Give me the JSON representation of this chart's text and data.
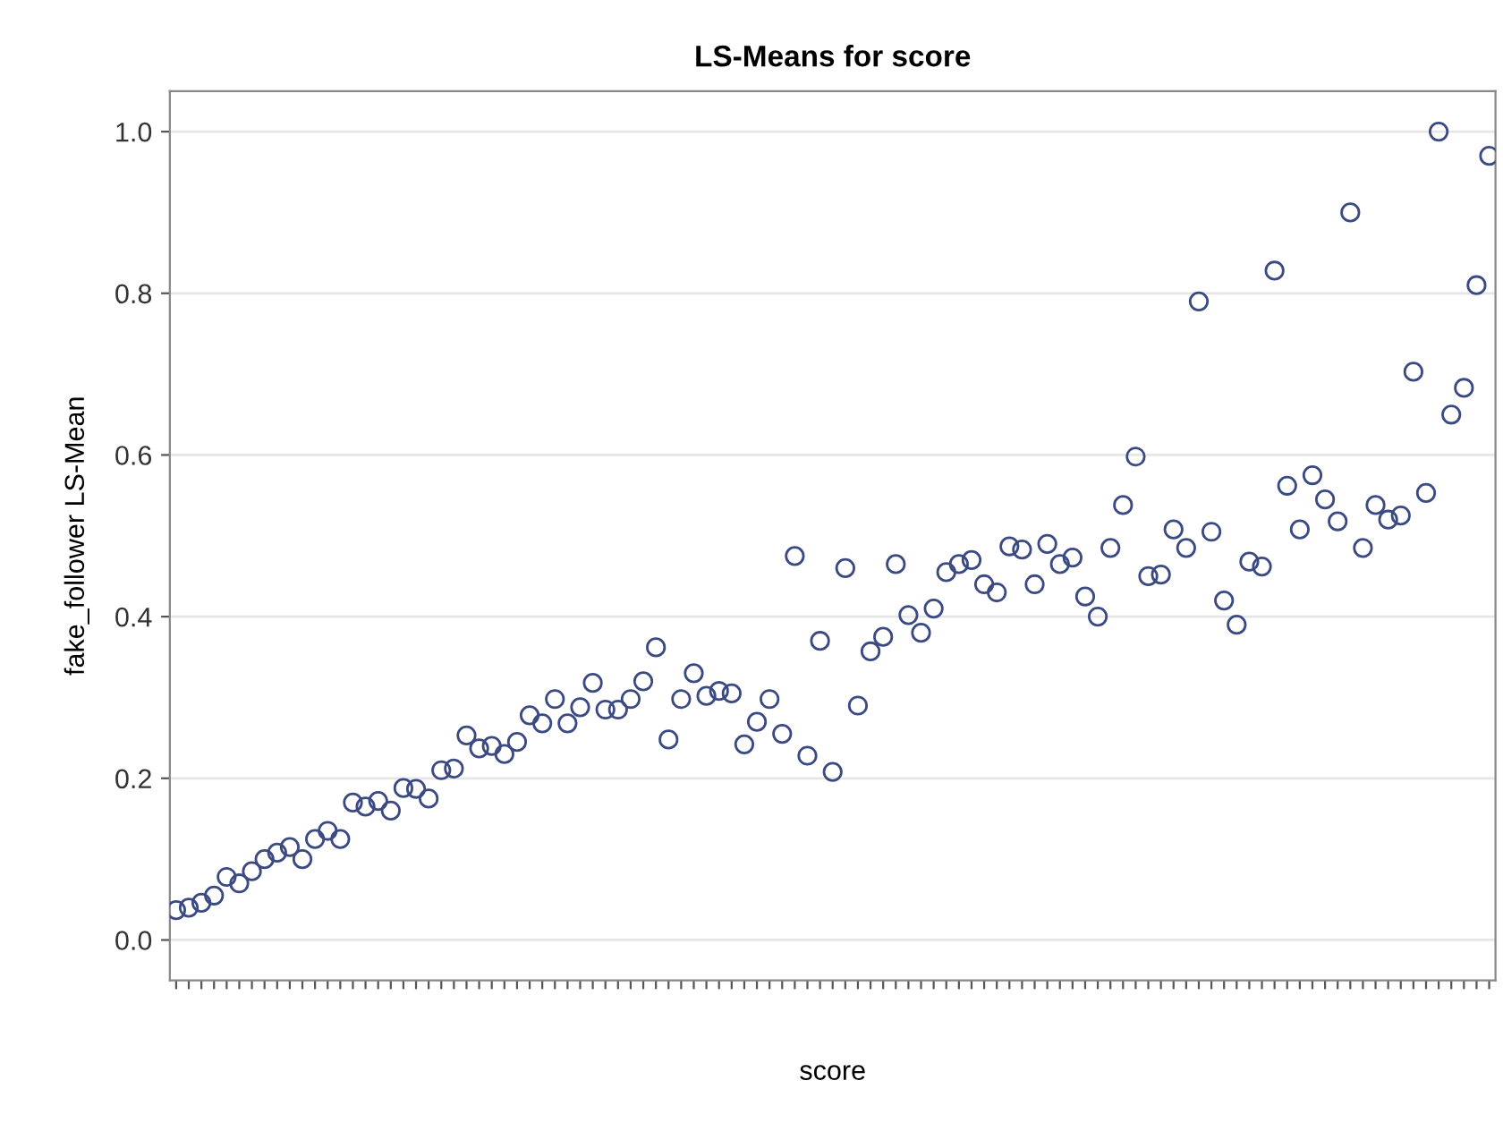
{
  "chart_data": {
    "type": "scatter",
    "title": "LS-Means for score",
    "xlabel": "score",
    "ylabel": "fake_follower LS-Mean",
    "categories": [
      null,
      null,
      null,
      null,
      null,
      null,
      null,
      null,
      null,
      null,
      null,
      null,
      null,
      null,
      null,
      null,
      null,
      null,
      null,
      null,
      null,
      null,
      null,
      null,
      null,
      null,
      null,
      null,
      null,
      null,
      null,
      null,
      null,
      null,
      null,
      null,
      null,
      null,
      null,
      null,
      null,
      null,
      null,
      null,
      null,
      null,
      null,
      null,
      null,
      null,
      null,
      null,
      null,
      null,
      null,
      null,
      null,
      null,
      null,
      null,
      null,
      null,
      null,
      null,
      null,
      null,
      null,
      null,
      null,
      null,
      null,
      null,
      null,
      null,
      null,
      null,
      null,
      null,
      null,
      null,
      null,
      null,
      null,
      null,
      null,
      null,
      null,
      null,
      null,
      null,
      null,
      null,
      null,
      null,
      null,
      null,
      null,
      null,
      null,
      null,
      null,
      null,
      null,
      null,
      null
    ],
    "series": [
      {
        "color": "#3b4a82",
        "values": [
          0.037,
          0.04,
          0.046,
          0.055,
          0.078,
          0.07,
          0.085,
          0.1,
          0.108,
          0.115,
          0.1,
          0.125,
          0.135,
          0.125,
          0.17,
          0.165,
          0.172,
          0.16,
          0.188,
          0.187,
          0.175,
          0.21,
          0.212,
          0.253,
          0.237,
          0.24,
          0.23,
          0.245,
          0.278,
          0.268,
          0.298,
          0.268,
          0.288,
          0.318,
          0.285,
          0.285,
          0.298,
          0.32,
          0.362,
          0.248,
          0.298,
          0.33,
          0.302,
          0.308,
          0.305,
          0.242,
          0.27,
          0.298,
          0.255,
          0.475,
          0.228,
          0.37,
          0.208,
          0.46,
          0.29,
          0.357,
          0.375,
          0.465,
          0.402,
          0.38,
          0.41,
          0.455,
          0.465,
          0.47,
          0.44,
          0.43,
          0.487,
          0.483,
          0.44,
          0.49,
          0.465,
          0.473,
          0.425,
          0.4,
          0.485,
          0.538,
          0.598,
          0.45,
          0.452,
          0.508,
          0.485,
          0.79,
          0.505,
          0.42,
          0.39,
          0.468,
          0.462,
          0.828,
          0.562,
          0.508,
          0.575,
          0.545,
          0.518,
          0.9,
          0.485,
          0.538,
          0.52,
          0.525,
          0.703,
          0.553,
          1.0,
          0.65,
          0.683,
          0.81,
          0.97
        ]
      }
    ],
    "ylim": [
      -0.05,
      1.05
    ],
    "yticks": [
      {
        "value": 0.0,
        "label": "0.0"
      },
      {
        "value": 0.2,
        "label": "0.2"
      },
      {
        "value": 0.4,
        "label": "0.4"
      },
      {
        "value": 0.6,
        "label": "0.6"
      },
      {
        "value": 0.8,
        "label": "0.8"
      },
      {
        "value": 1.0,
        "label": "1.0"
      }
    ],
    "grid": "y",
    "marker": "circle"
  }
}
